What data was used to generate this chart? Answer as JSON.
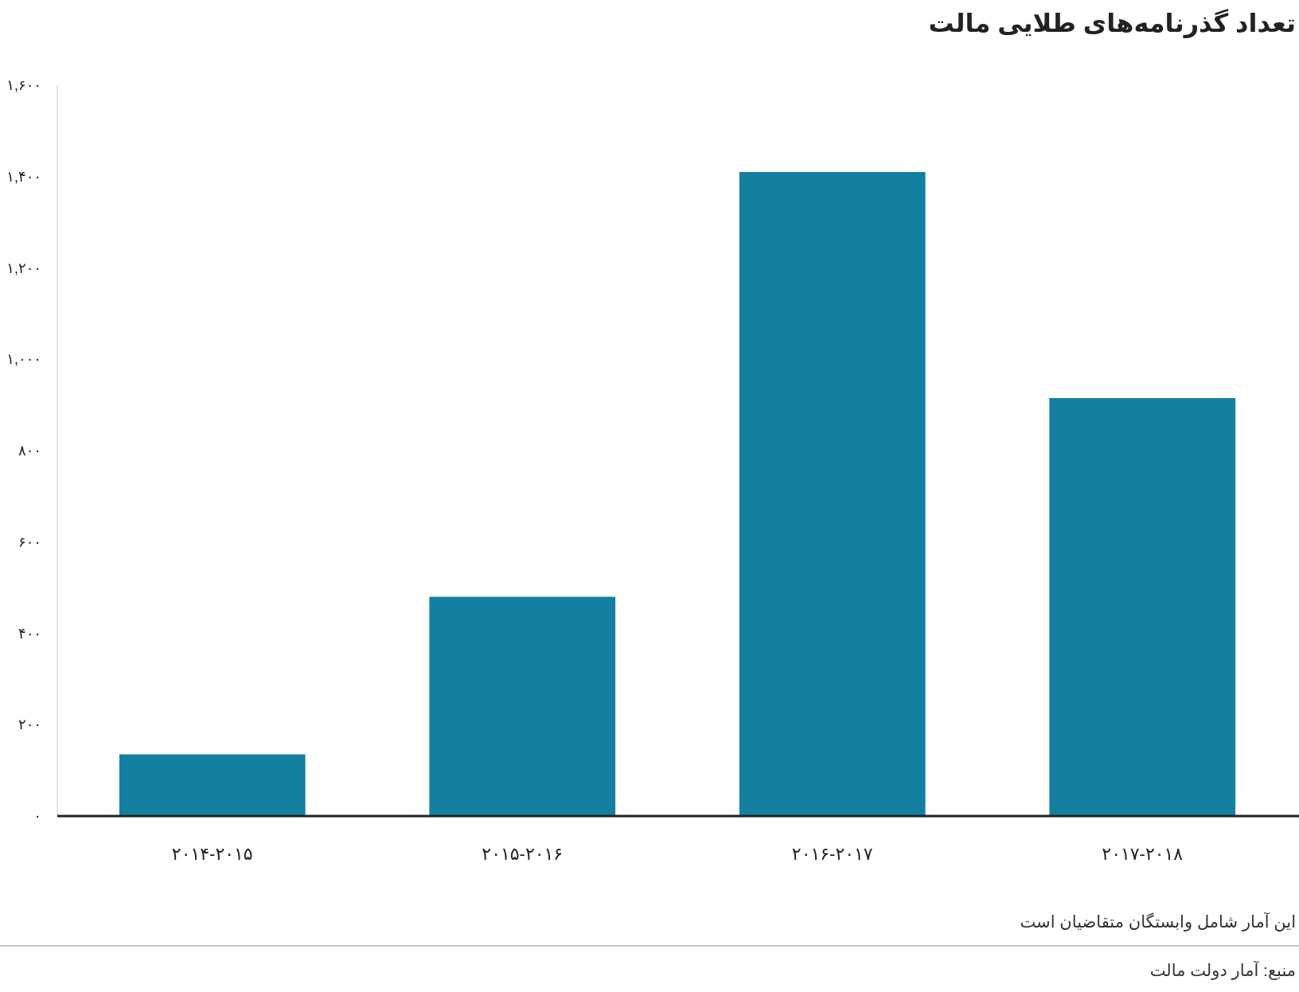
{
  "chart_data": {
    "type": "bar",
    "title": "تعداد گذرنامه‌های طلایی مالت",
    "categories": [
      "۲۰۱۴-۲۰۱۵",
      "۲۰۱۵-۲۰۱۶",
      "۲۰۱۶-۲۰۱۷",
      "۲۰۱۷-۲۰۱۸"
    ],
    "values": [
      135,
      480,
      1410,
      915
    ],
    "color": "#1380a1",
    "ylim": [
      0,
      1600
    ],
    "yticks": [
      {
        "value": 0,
        "label": "۰"
      },
      {
        "value": 200,
        "label": "۲۰۰"
      },
      {
        "value": 400,
        "label": "۴۰۰"
      },
      {
        "value": 600,
        "label": "۶۰۰"
      },
      {
        "value": 800,
        "label": "۸۰۰"
      },
      {
        "value": 1000,
        "label": "۱,۰۰۰"
      },
      {
        "value": 1200,
        "label": "۱,۲۰۰"
      },
      {
        "value": 1400,
        "label": "۱,۴۰۰"
      },
      {
        "value": 1600,
        "label": "۱,۶۰۰"
      }
    ],
    "annotations": [
      "این آمار شامل وابستگان متقاضیان است",
      "منبع: آمار دولت مالت"
    ]
  }
}
